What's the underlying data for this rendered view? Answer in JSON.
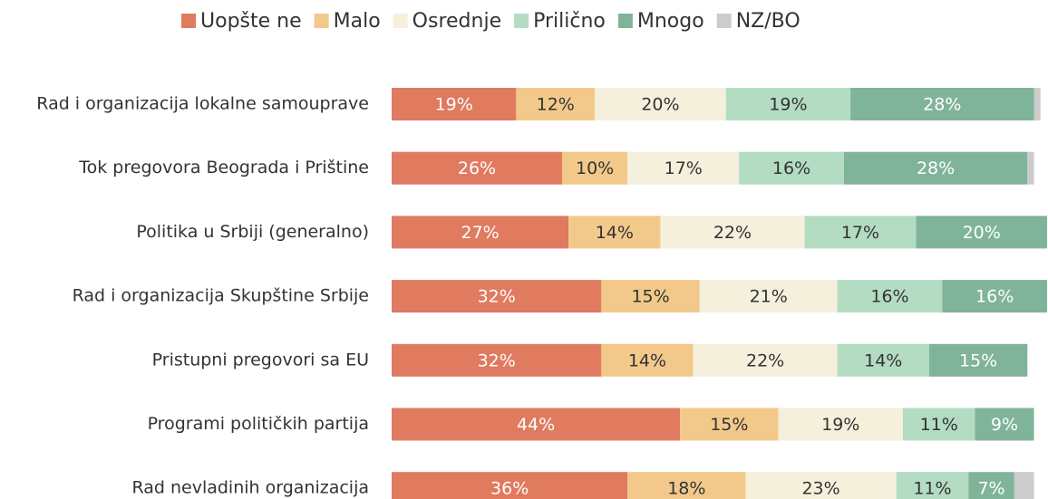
{
  "chart_data": {
    "type": "stacked-bar-horizontal",
    "categories": [
      "Rad i organizacija lokalne samouprave",
      "Tok pregovora Beograda i Prištine",
      "Politika u Srbiji (generalno)",
      "Rad i organizacija Skupštine Srbije",
      "Pristupni pregovori sa EU",
      "Programi političkih partija",
      "Rad nevladinih organizacija"
    ],
    "series": [
      {
        "name": "Uopšte ne",
        "color": "#e07b5f",
        "values": [
          19,
          26,
          27,
          32,
          32,
          44,
          36
        ],
        "value_labels": [
          "19%",
          "26%",
          "27%",
          "32%",
          "32%",
          "44%",
          "36%"
        ]
      },
      {
        "name": "Malo",
        "color": "#f2c98a",
        "values": [
          12,
          10,
          14,
          15,
          14,
          15,
          18
        ],
        "value_labels": [
          "12%",
          "10%",
          "14%",
          "15%",
          "14%",
          "15%",
          "18%"
        ]
      },
      {
        "name": "Osrednje",
        "color": "#f5f0dc",
        "values": [
          20,
          17,
          22,
          21,
          22,
          19,
          23
        ],
        "value_labels": [
          "20%",
          "17%",
          "22%",
          "21%",
          "22%",
          "19%",
          "23%"
        ]
      },
      {
        "name": "Prilično",
        "color": "#b3dcc3",
        "values": [
          19,
          16,
          17,
          16,
          14,
          11,
          11
        ],
        "value_labels": [
          "19%",
          "16%",
          "17%",
          "16%",
          "14%",
          "11%",
          "11%"
        ]
      },
      {
        "name": "Mnogo",
        "color": "#7fb49a",
        "values": [
          28,
          28,
          20,
          16,
          15,
          9,
          7
        ],
        "value_labels": [
          "28%",
          "28%",
          "20%",
          "16%",
          "15%",
          "9%",
          "7%"
        ]
      },
      {
        "name": "NZ/BO",
        "color": "#cccccc",
        "values": [
          1,
          1,
          0,
          0,
          0,
          0,
          3
        ]
      }
    ],
    "xlim": [
      0,
      100
    ],
    "legend": "top"
  }
}
